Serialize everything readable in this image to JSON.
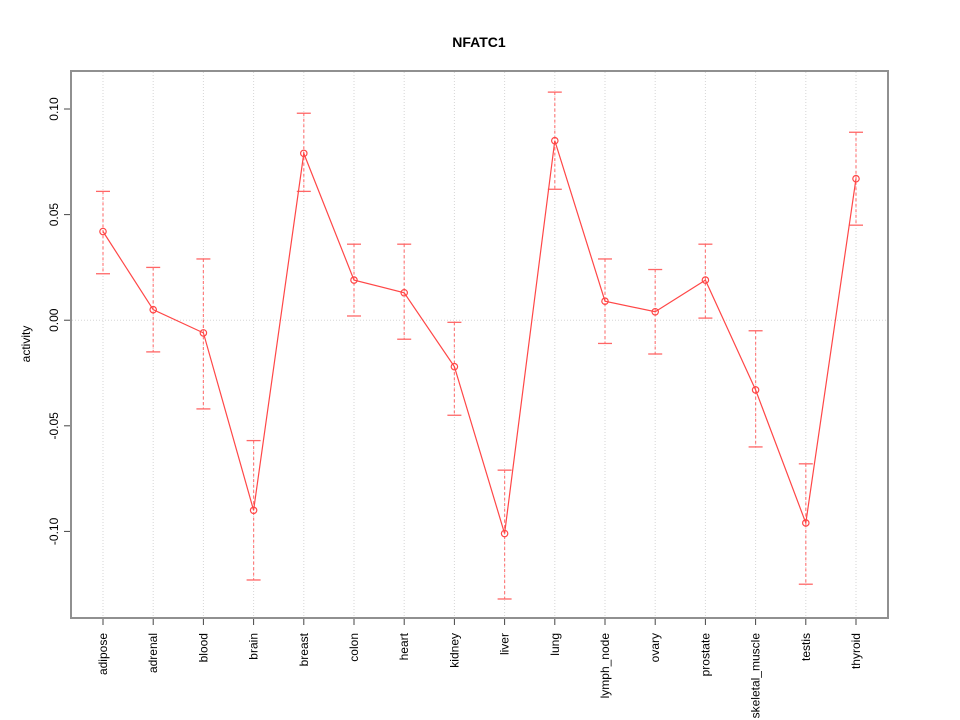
{
  "chart_data": {
    "type": "line",
    "title": "NFATC1",
    "xlabel": "",
    "ylabel": "activity",
    "categories": [
      "adipose",
      "adrenal",
      "blood",
      "brain",
      "breast",
      "colon",
      "heart",
      "kidney",
      "liver",
      "lung",
      "lymph_node",
      "ovary",
      "prostate",
      "skeletal_muscle",
      "testis",
      "thyroid"
    ],
    "series": [
      {
        "name": "activity",
        "values": [
          0.042,
          0.005,
          -0.006,
          -0.09,
          0.079,
          0.019,
          0.013,
          -0.022,
          -0.101,
          0.085,
          0.009,
          0.004,
          0.019,
          -0.033,
          -0.096,
          0.067
        ],
        "error_high": [
          0.061,
          0.025,
          0.029,
          -0.057,
          0.098,
          0.036,
          0.036,
          -0.001,
          -0.071,
          0.108,
          0.029,
          0.024,
          0.036,
          -0.005,
          -0.068,
          0.089
        ],
        "error_low": [
          0.022,
          -0.015,
          -0.042,
          -0.123,
          0.061,
          0.002,
          -0.009,
          -0.045,
          -0.132,
          0.062,
          -0.011,
          -0.016,
          0.001,
          -0.06,
          -0.125,
          0.045
        ]
      }
    ],
    "ytick_labels": [
      "0.10",
      "0.05",
      "0.00",
      "-0.05",
      "-0.10"
    ],
    "yticks": [
      0.1,
      0.05,
      0.0,
      -0.05,
      -0.1
    ],
    "ylim": [
      -0.141,
      0.118
    ],
    "legend": "none",
    "grid": "dotted vertical line per category, dotted horizontal line at 0",
    "marker": "open-circle",
    "colors": {
      "line": "#ff4747",
      "marker": "#ff4747",
      "errorbar": "#ff7f7f",
      "errorbar_cap": "#ff6666",
      "grid": "#d6d6d6",
      "zero_line": "#d6d6d6",
      "box_border": "#909090",
      "tick": "#444444",
      "text": "#000000",
      "background": "#ffffff"
    }
  }
}
